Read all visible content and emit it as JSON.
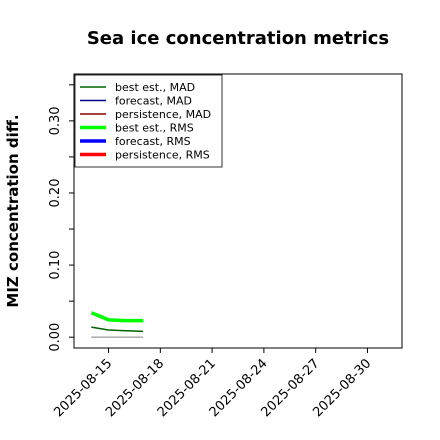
{
  "chart_data": {
    "type": "line",
    "title": "Sea ice concentration metrics",
    "ylabel": "MIZ concentration diff.",
    "xlabel": "",
    "xlim": [
      "2025-08-13",
      "2025-09-01"
    ],
    "ylim": [
      -0.015,
      0.365
    ],
    "yticks": [
      0.0,
      0.1,
      0.2,
      0.3
    ],
    "ytick_labels": [
      "0.00",
      "0.10",
      "0.20",
      "0.30"
    ],
    "yminor_step": 0.05,
    "xticks": [
      "2025-08-15",
      "2025-08-18",
      "2025-08-21",
      "2025-08-24",
      "2025-08-27",
      "2025-08-30"
    ],
    "xtick_labels": [
      "2025-08-15",
      "2025-08-18",
      "2025-08-21",
      "2025-08-24",
      "2025-08-27",
      "2025-08-30"
    ],
    "highlight_tick": "2025-08-21",
    "highlight_color": "#228b22",
    "legend_position": "top-left",
    "grid": false,
    "series": [
      {
        "name": "best est., MAD",
        "color": "#006400",
        "width": 1.5,
        "x": [
          "2025-08-14",
          "2025-08-15",
          "2025-08-16",
          "2025-08-17"
        ],
        "y": [
          0.014,
          0.01,
          0.009,
          0.008
        ]
      },
      {
        "name": "forecast,  MAD",
        "color": "#00008b",
        "width": 1.5,
        "x": [],
        "y": []
      },
      {
        "name": "persistence, MAD",
        "color": "#8b0000",
        "width": 1.5,
        "x": [],
        "y": []
      },
      {
        "name": "best est., RMS",
        "color": "#00ff00",
        "width": 3.5,
        "x": [
          "2025-08-14",
          "2025-08-15",
          "2025-08-16",
          "2025-08-17"
        ],
        "y": [
          0.034,
          0.024,
          0.023,
          0.023
        ]
      },
      {
        "name": "forecast,  RMS",
        "color": "#0000ff",
        "width": 3.5,
        "x": [],
        "y": []
      },
      {
        "name": "persistence, RMS",
        "color": "#ff0000",
        "width": 3.5,
        "x": [],
        "y": []
      }
    ],
    "reference_line": {
      "color": "#808080",
      "x": [
        "2025-08-14",
        "2025-08-17"
      ],
      "y": [
        0.0,
        0.0
      ]
    }
  }
}
